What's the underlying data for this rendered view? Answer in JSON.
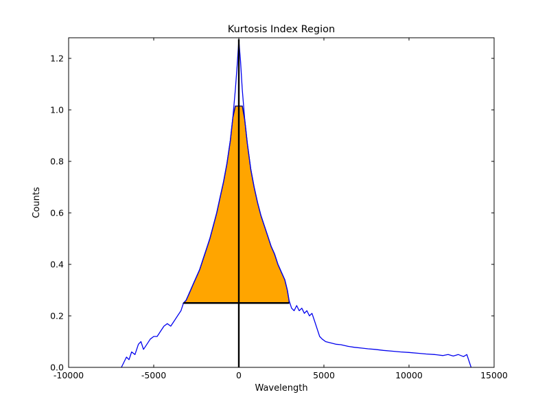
{
  "chart_data": {
    "type": "line",
    "title": "Kurtosis Index Region",
    "xlabel": "Wavelength",
    "ylabel": "Counts",
    "xlim": [
      -10000,
      15000
    ],
    "ylim": [
      0,
      1.28
    ],
    "xticks": [
      -10000,
      -5000,
      0,
      5000,
      10000,
      15000
    ],
    "yticks": [
      0.0,
      0.2,
      0.4,
      0.6,
      0.8,
      1.0,
      1.2
    ],
    "grid": false,
    "legend": "none",
    "colors": {
      "curve": "#0000ee",
      "fill": "#ffa500",
      "fill_edge": "#00008b",
      "annotation": "#000000",
      "frame": "#000000"
    },
    "series": [
      {
        "name": "line-profile",
        "points": [
          [
            -6900,
            0.0
          ],
          [
            -6750,
            0.02
          ],
          [
            -6600,
            0.04
          ],
          [
            -6450,
            0.03
          ],
          [
            -6300,
            0.06
          ],
          [
            -6100,
            0.05
          ],
          [
            -5900,
            0.09
          ],
          [
            -5750,
            0.1
          ],
          [
            -5600,
            0.07
          ],
          [
            -5400,
            0.09
          ],
          [
            -5200,
            0.11
          ],
          [
            -5000,
            0.12
          ],
          [
            -4800,
            0.12
          ],
          [
            -4600,
            0.14
          ],
          [
            -4400,
            0.16
          ],
          [
            -4200,
            0.17
          ],
          [
            -4000,
            0.16
          ],
          [
            -3800,
            0.18
          ],
          [
            -3600,
            0.2
          ],
          [
            -3400,
            0.22
          ],
          [
            -3250,
            0.25
          ],
          [
            -3100,
            0.26
          ],
          [
            -2900,
            0.29
          ],
          [
            -2700,
            0.32
          ],
          [
            -2500,
            0.35
          ],
          [
            -2300,
            0.38
          ],
          [
            -2100,
            0.42
          ],
          [
            -1900,
            0.46
          ],
          [
            -1700,
            0.5
          ],
          [
            -1500,
            0.55
          ],
          [
            -1300,
            0.6
          ],
          [
            -1100,
            0.66
          ],
          [
            -900,
            0.72
          ],
          [
            -700,
            0.79
          ],
          [
            -500,
            0.88
          ],
          [
            -350,
            0.97
          ],
          [
            -200,
            1.08
          ],
          [
            -100,
            1.17
          ],
          [
            0,
            1.27
          ],
          [
            100,
            1.19
          ],
          [
            200,
            1.08
          ],
          [
            350,
            0.96
          ],
          [
            500,
            0.87
          ],
          [
            700,
            0.77
          ],
          [
            900,
            0.7
          ],
          [
            1100,
            0.64
          ],
          [
            1300,
            0.59
          ],
          [
            1500,
            0.55
          ],
          [
            1700,
            0.51
          ],
          [
            1900,
            0.47
          ],
          [
            2100,
            0.44
          ],
          [
            2300,
            0.4
          ],
          [
            2500,
            0.37
          ],
          [
            2700,
            0.34
          ],
          [
            2850,
            0.3
          ],
          [
            2950,
            0.26
          ],
          [
            3100,
            0.23
          ],
          [
            3250,
            0.22
          ],
          [
            3400,
            0.24
          ],
          [
            3550,
            0.22
          ],
          [
            3700,
            0.23
          ],
          [
            3850,
            0.21
          ],
          [
            4000,
            0.22
          ],
          [
            4150,
            0.2
          ],
          [
            4300,
            0.21
          ],
          [
            4450,
            0.18
          ],
          [
            4600,
            0.15
          ],
          [
            4750,
            0.12
          ],
          [
            4900,
            0.11
          ],
          [
            5100,
            0.1
          ],
          [
            5400,
            0.095
          ],
          [
            5700,
            0.09
          ],
          [
            6000,
            0.088
          ],
          [
            6400,
            0.082
          ],
          [
            6800,
            0.078
          ],
          [
            7200,
            0.075
          ],
          [
            7600,
            0.072
          ],
          [
            8000,
            0.07
          ],
          [
            8500,
            0.066
          ],
          [
            9000,
            0.063
          ],
          [
            9500,
            0.06
          ],
          [
            10000,
            0.058
          ],
          [
            10500,
            0.055
          ],
          [
            11000,
            0.052
          ],
          [
            11500,
            0.05
          ],
          [
            12000,
            0.046
          ],
          [
            12300,
            0.05
          ],
          [
            12600,
            0.044
          ],
          [
            12900,
            0.05
          ],
          [
            13200,
            0.042
          ],
          [
            13400,
            0.05
          ],
          [
            13550,
            0.02
          ],
          [
            13650,
            0.0
          ]
        ]
      }
    ],
    "fill_region": {
      "name": "kurtosis-index-region",
      "x_range": [
        -3250,
        2950
      ],
      "baseline": 0.25,
      "cap": 1.015
    },
    "annotations": {
      "vline": {
        "x": 0,
        "y_range": [
          0.0,
          1.274
        ]
      },
      "hline": {
        "y": 0.25,
        "x_range": [
          -3250,
          2950
        ]
      }
    }
  }
}
